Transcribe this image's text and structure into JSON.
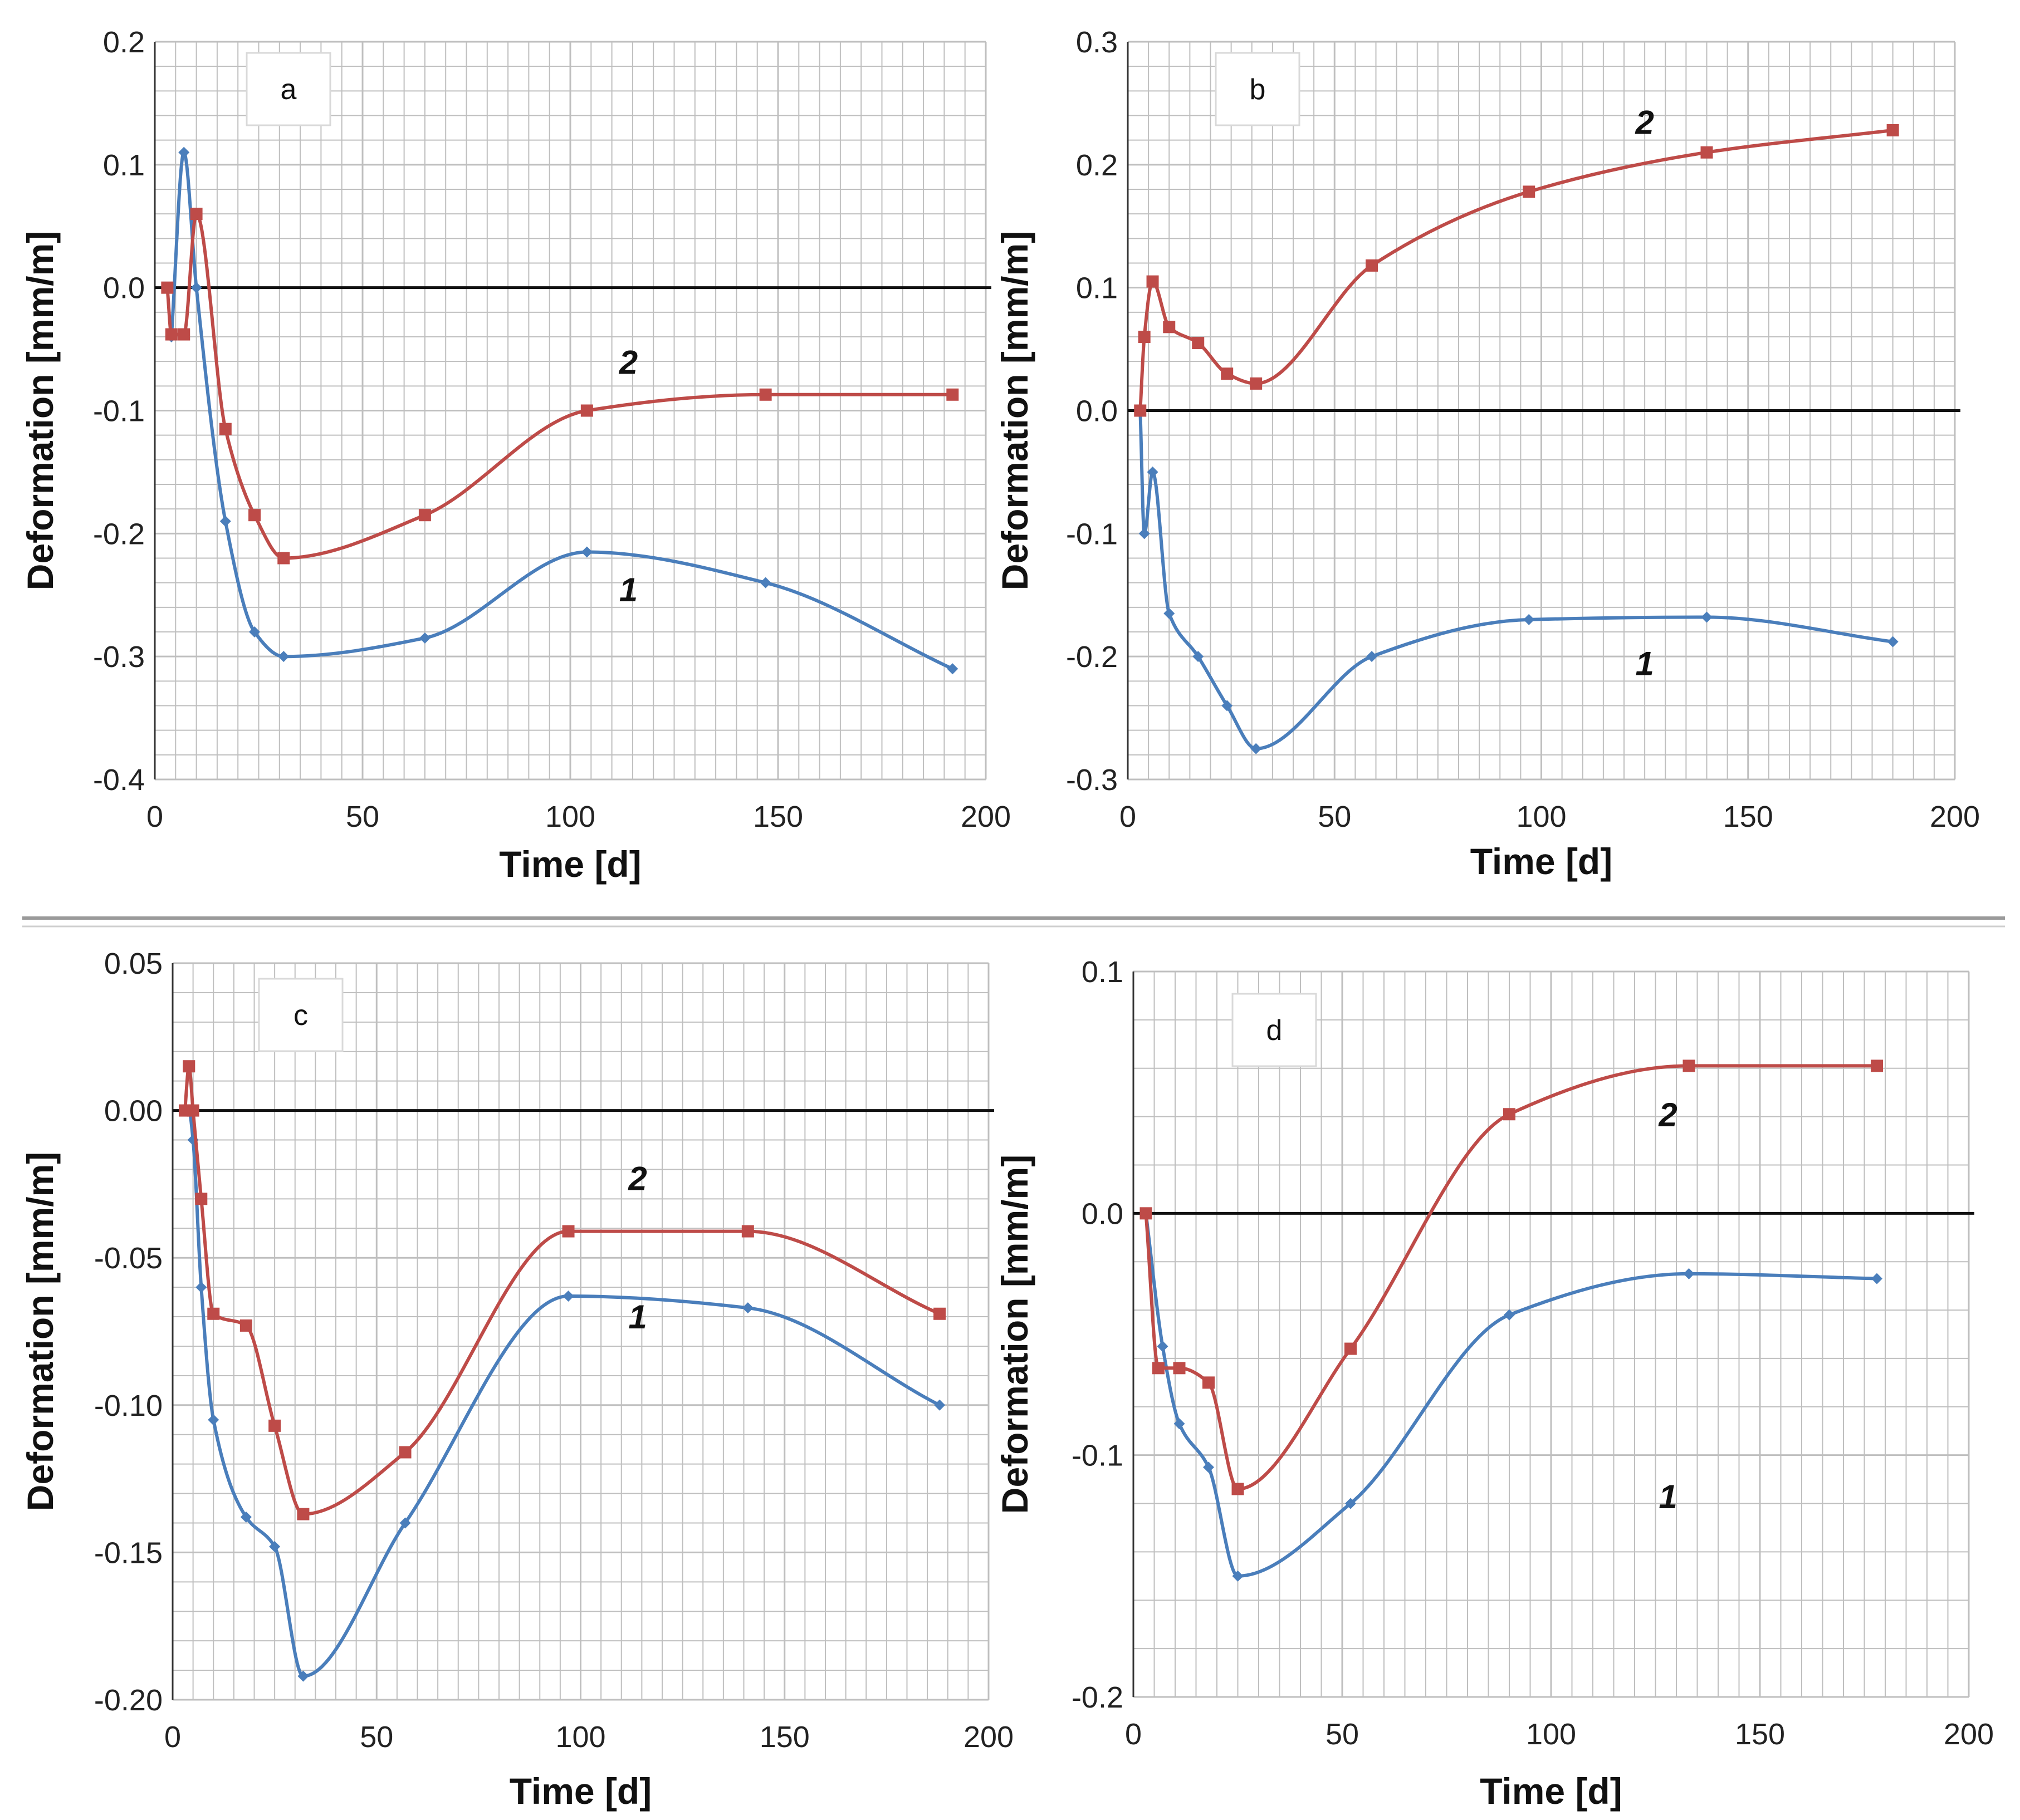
{
  "colors": {
    "series1": "#4a7ebb",
    "series2": "#be4b48",
    "grid": "#bfbfbf",
    "zero": "#111111"
  },
  "chart_data": [
    {
      "type": "line",
      "panel": "a",
      "xlabel": "Time [d]",
      "ylabel": "Deformation [mm/m]",
      "xlim": [
        0,
        200
      ],
      "ylim": [
        -0.4,
        0.2
      ],
      "xticks": [
        {
          "v": 0,
          "t": "0"
        },
        {
          "v": 50,
          "t": "50"
        },
        {
          "v": 100,
          "t": "100"
        },
        {
          "v": 150,
          "t": "150"
        },
        {
          "v": 200,
          "t": "200"
        }
      ],
      "yticks": [
        {
          "v": 0.2,
          "t": "0.2"
        },
        {
          "v": 0.1,
          "t": "0.1"
        },
        {
          "v": 0,
          "t": "0.0"
        },
        {
          "v": -0.1,
          "t": "-0.1"
        },
        {
          "v": -0.2,
          "t": "-0.2"
        },
        {
          "v": -0.3,
          "t": "-0.3"
        },
        {
          "v": -0.4,
          "t": "-0.4"
        }
      ],
      "series": [
        {
          "name": "1",
          "label_at": [
            114,
            -0.255
          ],
          "x": [
            4,
            7,
            10,
            17,
            24,
            31,
            65,
            104,
            147,
            192
          ],
          "y": [
            -0.04,
            0.11,
            0.0,
            -0.19,
            -0.28,
            -0.3,
            -0.285,
            -0.215,
            -0.24,
            -0.31
          ]
        },
        {
          "name": "2",
          "label_at": [
            114,
            -0.07
          ],
          "x": [
            3,
            4,
            7,
            10,
            17,
            24,
            31,
            65,
            104,
            147,
            192
          ],
          "y": [
            0.0,
            -0.038,
            -0.038,
            0.06,
            -0.115,
            -0.185,
            -0.22,
            -0.185,
            -0.1,
            -0.087,
            -0.087
          ]
        }
      ]
    },
    {
      "type": "line",
      "panel": "b",
      "xlabel": "Time [d]",
      "ylabel": "Deformation [mm/m]",
      "xlim": [
        0,
        200
      ],
      "ylim": [
        -0.3,
        0.3
      ],
      "xticks": [
        {
          "v": 0,
          "t": "0"
        },
        {
          "v": 50,
          "t": "50"
        },
        {
          "v": 100,
          "t": "100"
        },
        {
          "v": 150,
          "t": "150"
        },
        {
          "v": 200,
          "t": "200"
        }
      ],
      "yticks": [
        {
          "v": 0.3,
          "t": "0.3"
        },
        {
          "v": 0.2,
          "t": "0.2"
        },
        {
          "v": 0.1,
          "t": "0.1"
        },
        {
          "v": 0,
          "t": "0.0"
        },
        {
          "v": -0.1,
          "t": "-0.1"
        },
        {
          "v": -0.2,
          "t": "-0.2"
        },
        {
          "v": -0.3,
          "t": "-0.3"
        }
      ],
      "series": [
        {
          "name": "1",
          "label_at": [
            125,
            -0.215
          ],
          "x": [
            3,
            4,
            6,
            10,
            17,
            24,
            31,
            59,
            97,
            140,
            185
          ],
          "y": [
            0.0,
            -0.1,
            -0.05,
            -0.165,
            -0.2,
            -0.24,
            -0.275,
            -0.2,
            -0.17,
            -0.168,
            -0.188
          ]
        },
        {
          "name": "2",
          "label_at": [
            125,
            0.225
          ],
          "x": [
            3,
            4,
            6,
            10,
            17,
            24,
            31,
            59,
            97,
            140,
            185
          ],
          "y": [
            0.0,
            0.06,
            0.105,
            0.068,
            0.055,
            0.03,
            0.022,
            0.118,
            0.178,
            0.21,
            0.228
          ]
        }
      ]
    },
    {
      "type": "line",
      "panel": "c",
      "xlabel": "Time [d]",
      "ylabel": "Deformation [mm/m]",
      "xlim": [
        0,
        200
      ],
      "ylim": [
        -0.2,
        0.05
      ],
      "xticks": [
        {
          "v": 0,
          "t": "0"
        },
        {
          "v": 50,
          "t": "50"
        },
        {
          "v": 100,
          "t": "100"
        },
        {
          "v": 150,
          "t": "150"
        },
        {
          "v": 200,
          "t": "200"
        }
      ],
      "yticks": [
        {
          "v": 0.05,
          "t": "0.05"
        },
        {
          "v": 0,
          "t": "0.00"
        },
        {
          "v": -0.05,
          "t": "-0.05"
        },
        {
          "v": -0.1,
          "t": "-0.10"
        },
        {
          "v": -0.15,
          "t": "-0.15"
        },
        {
          "v": -0.2,
          "t": "-0.20"
        }
      ],
      "series": [
        {
          "name": "1",
          "label_at": [
            114,
            -0.074
          ],
          "x": [
            3,
            4,
            5,
            7,
            10,
            18,
            25,
            32,
            57,
            97,
            141,
            188
          ],
          "y": [
            0.0,
            0.0,
            -0.01,
            -0.06,
            -0.105,
            -0.138,
            -0.148,
            -0.192,
            -0.14,
            -0.063,
            -0.067,
            -0.1
          ]
        },
        {
          "name": "2",
          "label_at": [
            114,
            -0.027
          ],
          "x": [
            3,
            4,
            5,
            7,
            10,
            18,
            25,
            32,
            57,
            97,
            141,
            188
          ],
          "y": [
            0.0,
            0.015,
            0.0,
            -0.03,
            -0.069,
            -0.073,
            -0.107,
            -0.137,
            -0.116,
            -0.041,
            -0.041,
            -0.069
          ]
        }
      ]
    },
    {
      "type": "line",
      "panel": "d",
      "xlabel": "Time [d]",
      "ylabel": "Deformation [mm/m]",
      "xlim": [
        0,
        200
      ],
      "ylim": [
        -0.2,
        0.1
      ],
      "xticks": [
        {
          "v": 0,
          "t": "0"
        },
        {
          "v": 50,
          "t": "50"
        },
        {
          "v": 100,
          "t": "100"
        },
        {
          "v": 150,
          "t": "150"
        },
        {
          "v": 200,
          "t": "200"
        }
      ],
      "yticks": [
        {
          "v": 0.1,
          "t": "0.1"
        },
        {
          "v": 0,
          "t": "0.0"
        },
        {
          "v": -0.1,
          "t": "-0.1"
        },
        {
          "v": -0.2,
          "t": "-0.2"
        }
      ],
      "series": [
        {
          "name": "1",
          "label_at": [
            128,
            -0.122
          ],
          "x": [
            3,
            7,
            11,
            18,
            25,
            52,
            90,
            133,
            178
          ],
          "y": [
            0.0,
            -0.055,
            -0.087,
            -0.105,
            -0.15,
            -0.12,
            -0.042,
            -0.025,
            -0.027
          ]
        },
        {
          "name": "2",
          "label_at": [
            128,
            0.036
          ],
          "x": [
            3,
            6,
            11,
            18,
            25,
            52,
            90,
            133,
            178
          ],
          "y": [
            0.0,
            -0.064,
            -0.064,
            -0.07,
            -0.114,
            -0.056,
            0.041,
            0.061,
            0.061
          ]
        }
      ]
    }
  ]
}
